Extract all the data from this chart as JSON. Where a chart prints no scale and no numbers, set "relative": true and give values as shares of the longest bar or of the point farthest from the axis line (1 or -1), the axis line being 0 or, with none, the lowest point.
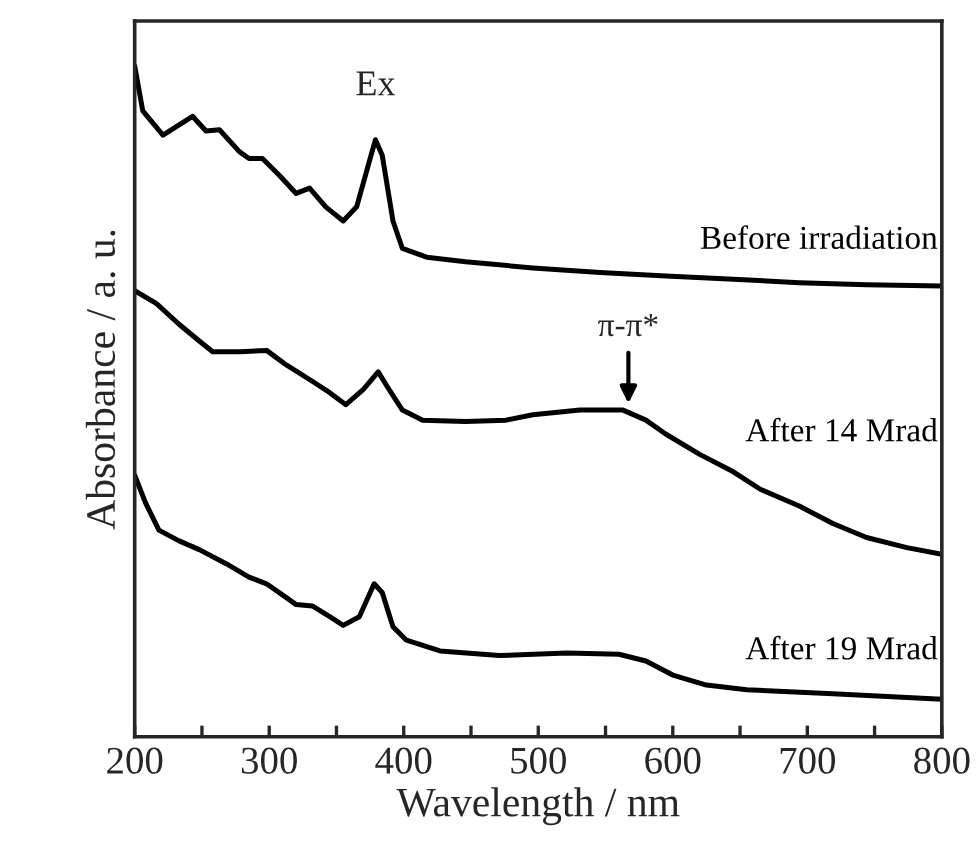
{
  "chart_data": {
    "type": "line",
    "relative": true,
    "xlabel": "Wavelength / nm",
    "ylabel": "Absorbance / a. u.",
    "xlim": [
      200,
      800
    ],
    "xticks": [
      200,
      {
        "value": 250,
        "label": null
      },
      300,
      {
        "value": 350,
        "label": null
      },
      400,
      {
        "value": 450,
        "label": null
      },
      500,
      {
        "value": 550,
        "label": null
      },
      600,
      {
        "value": 650,
        "label": null
      },
      700,
      {
        "value": 750,
        "label": null
      },
      800
    ],
    "tick_labels": "x",
    "grid": false,
    "legend": false,
    "marker": "none",
    "line_style": "solid",
    "series": [
      {
        "name": "Before irradiation",
        "color": "#000000",
        "x": [
          200,
          206,
          221,
          243,
          253,
          263,
          278,
          285,
          295,
          308,
          320,
          330,
          342,
          355,
          365,
          375,
          379,
          384,
          392,
          399,
          417,
          446,
          496,
          546,
          595,
          645,
          694,
          744,
          800
        ],
        "values": [
          1.0,
          0.933,
          0.897,
          0.925,
          0.903,
          0.905,
          0.872,
          0.862,
          0.862,
          0.836,
          0.81,
          0.818,
          0.79,
          0.769,
          0.79,
          0.862,
          0.89,
          0.867,
          0.769,
          0.728,
          0.715,
          0.708,
          0.699,
          0.692,
          0.687,
          0.682,
          0.677,
          0.674,
          0.672
        ]
      },
      {
        "name": "After 14 Mrad",
        "color": "#000000",
        "x": [
          200,
          216,
          233,
          248,
          258,
          278,
          298,
          313,
          332,
          345,
          357,
          370,
          381,
          389,
          399,
          414,
          446,
          476,
          496,
          531,
          563,
          580,
          595,
          620,
          645,
          665,
          694,
          719,
          744,
          774,
          800
        ],
        "values": [
          0.665,
          0.646,
          0.615,
          0.59,
          0.574,
          0.574,
          0.576,
          0.554,
          0.53,
          0.513,
          0.495,
          0.518,
          0.544,
          0.518,
          0.487,
          0.472,
          0.47,
          0.472,
          0.48,
          0.487,
          0.487,
          0.472,
          0.451,
          0.421,
          0.395,
          0.369,
          0.344,
          0.318,
          0.297,
          0.282,
          0.272
        ]
      },
      {
        "name": "After 19 Mrad",
        "color": "#000000",
        "x": [
          200,
          208,
          218,
          233,
          248,
          268,
          285,
          298,
          313,
          320,
          332,
          345,
          355,
          367,
          378,
          384,
          392,
          402,
          427,
          471,
          521,
          560,
          580,
          600,
          625,
          655,
          719,
          800
        ],
        "values": [
          0.39,
          0.349,
          0.308,
          0.292,
          0.279,
          0.258,
          0.238,
          0.228,
          0.207,
          0.197,
          0.195,
          0.179,
          0.166,
          0.179,
          0.228,
          0.215,
          0.164,
          0.144,
          0.128,
          0.121,
          0.125,
          0.123,
          0.113,
          0.092,
          0.077,
          0.07,
          0.064,
          0.056
        ]
      }
    ],
    "annotations": [
      {
        "text": "Ex",
        "x": 379,
        "y": 0.89
      },
      {
        "text": "π-π*",
        "x": 567,
        "y": 0.487
      }
    ]
  }
}
